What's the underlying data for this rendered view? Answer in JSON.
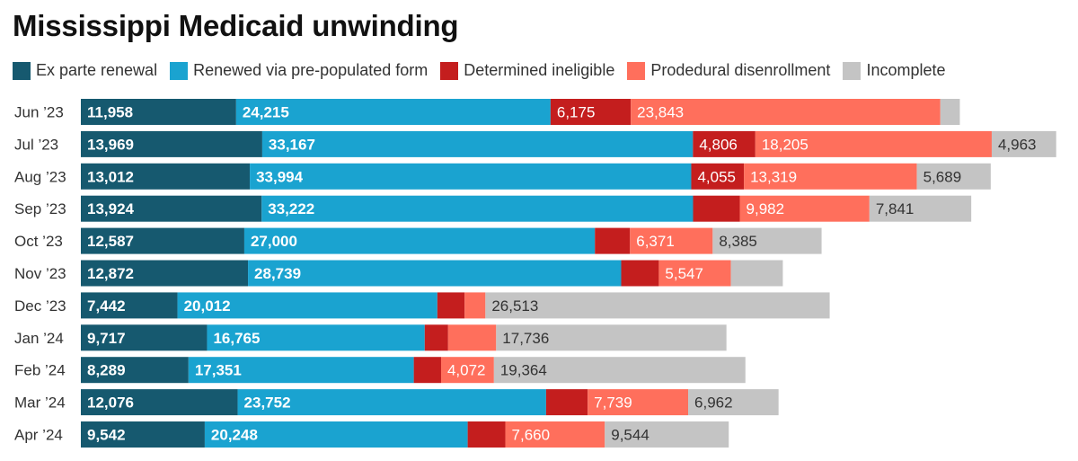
{
  "colors": {
    "ex_parte": "#16596f",
    "pre_populated": "#1aa3d0",
    "ineligible": "#c41e1e",
    "procedural": "#ff6f5c",
    "incomplete": "#c4c4c4"
  },
  "chart_data": {
    "type": "bar",
    "orientation": "horizontal",
    "stacked": true,
    "title": "Mississippi Medicaid unwinding",
    "legend_position": "top",
    "grid": false,
    "categories": [
      "Jun ’23",
      "Jul ’23",
      "Aug ’23",
      "Sep ’23",
      "Oct ’23",
      "Nov ’23",
      "Dec ’23",
      "Jan ’24",
      "Feb ’24",
      "Mar ’24",
      "Apr ’24"
    ],
    "series": [
      {
        "name": "Ex parte renewal",
        "color": "#16596f",
        "values": [
          11958,
          13969,
          13012,
          13924,
          12587,
          12872,
          7442,
          9717,
          8289,
          12076,
          9542
        ],
        "labeled": [
          true,
          true,
          true,
          true,
          true,
          true,
          true,
          true,
          true,
          true,
          true
        ]
      },
      {
        "name": "Renewed via pre-populated form",
        "color": "#1aa3d0",
        "values": [
          24215,
          33167,
          33994,
          33222,
          27000,
          28739,
          20012,
          16765,
          17351,
          23752,
          20248
        ],
        "labeled": [
          true,
          true,
          true,
          true,
          true,
          true,
          true,
          true,
          true,
          true,
          true
        ]
      },
      {
        "name": "Determined ineligible",
        "color": "#c41e1e",
        "values": [
          6175,
          4806,
          4055,
          3600,
          2700,
          2900,
          2100,
          1800,
          2100,
          3200,
          2900
        ],
        "labeled": [
          true,
          true,
          true,
          false,
          false,
          false,
          false,
          false,
          false,
          false,
          false
        ]
      },
      {
        "name": "Prodedural disenrollment",
        "color": "#ff6f5c",
        "values": [
          23843,
          18205,
          13319,
          9982,
          6371,
          5547,
          1600,
          3700,
          4072,
          7739,
          7660
        ],
        "labeled": [
          true,
          true,
          true,
          true,
          true,
          true,
          false,
          false,
          true,
          true,
          true
        ]
      },
      {
        "name": "Incomplete",
        "color": "#c4c4c4",
        "values": [
          1500,
          4963,
          5689,
          7841,
          8385,
          4000,
          26513,
          17736,
          19364,
          6962,
          9544
        ],
        "labeled": [
          false,
          true,
          true,
          true,
          true,
          false,
          true,
          true,
          true,
          true,
          true
        ]
      }
    ]
  }
}
